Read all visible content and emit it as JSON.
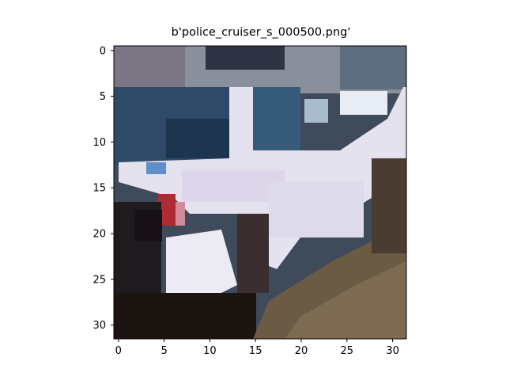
{
  "figure": {
    "title": "b'police_cruiser_s_000500.png'",
    "image_description": "Low-resolution 32x32 pixel image of a white police cruiser with a red light on the front left, dark background and brownish ground at the bottom right.",
    "x_ticks": [
      "0",
      "5",
      "10",
      "15",
      "20",
      "25",
      "30"
    ],
    "y_ticks": [
      "0",
      "5",
      "10",
      "15",
      "20",
      "25",
      "30"
    ],
    "grid": false,
    "colors": {
      "axes_frame": "#000000",
      "background": "#ffffff"
    }
  }
}
